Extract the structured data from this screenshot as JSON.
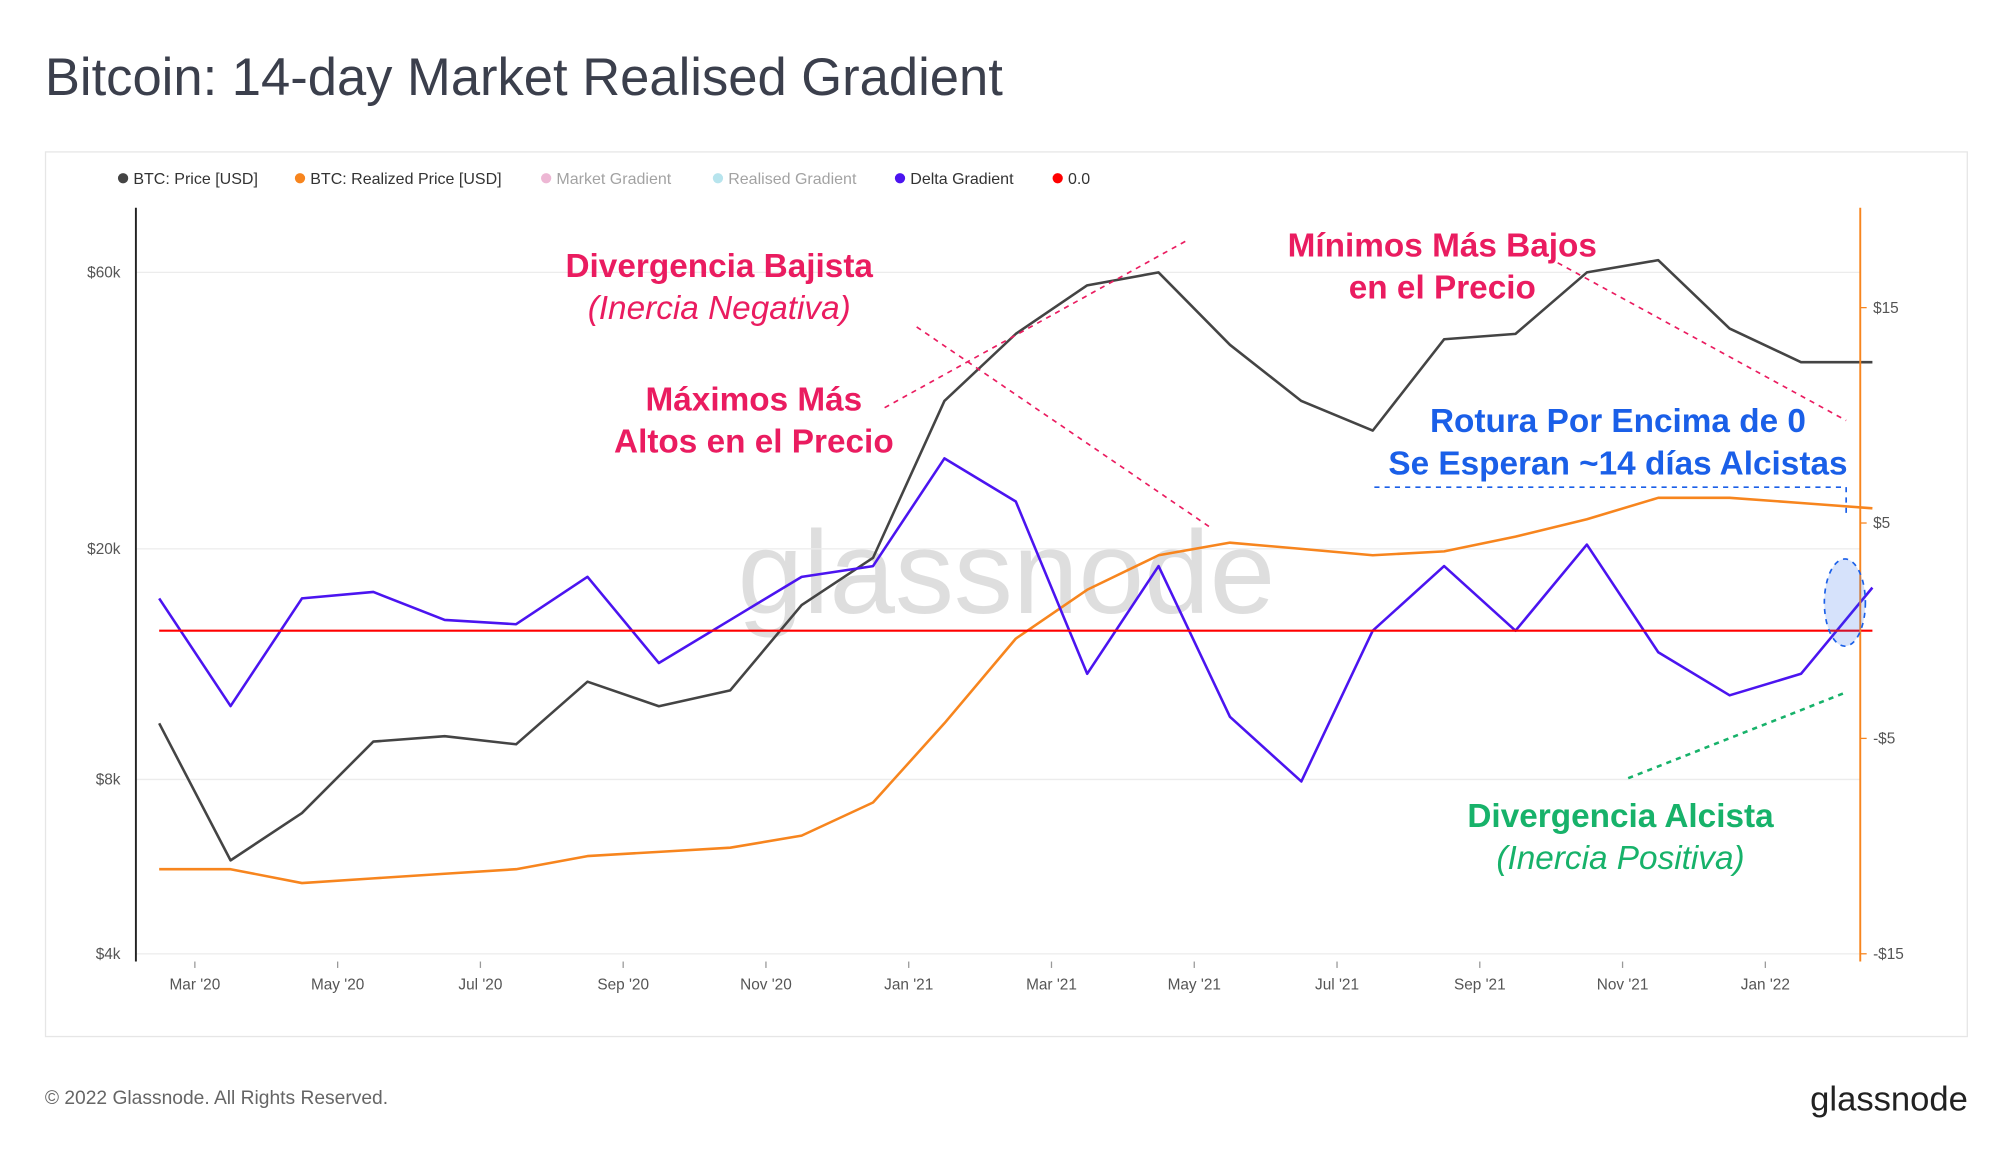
{
  "chart_data": {
    "type": "line",
    "title": "Bitcoin: 14-day Market Realised Gradient",
    "x": [
      "2020-02",
      "2020-03",
      "2020-04",
      "2020-05",
      "2020-06",
      "2020-07",
      "2020-08",
      "2020-09",
      "2020-10",
      "2020-11",
      "2020-12",
      "2021-01",
      "2021-02",
      "2021-03",
      "2021-04",
      "2021-05",
      "2021-06",
      "2021-07",
      "2021-08",
      "2021-09",
      "2021-10",
      "2021-11",
      "2021-12",
      "2022-01",
      "2022-02"
    ],
    "xticks": [
      {
        "value": "2020-03",
        "label": "Mar '20"
      },
      {
        "value": "2020-05",
        "label": "May '20"
      },
      {
        "value": "2020-07",
        "label": "Jul '20"
      },
      {
        "value": "2020-09",
        "label": "Sep '20"
      },
      {
        "value": "2020-11",
        "label": "Nov '20"
      },
      {
        "value": "2021-01",
        "label": "Jan '21"
      },
      {
        "value": "2021-03",
        "label": "Mar '21"
      },
      {
        "value": "2021-05",
        "label": "May '21"
      },
      {
        "value": "2021-07",
        "label": "Jul '21"
      },
      {
        "value": "2021-09",
        "label": "Sep '21"
      },
      {
        "value": "2021-11",
        "label": "Nov '21"
      },
      {
        "value": "2022-01",
        "label": "Jan '22"
      }
    ],
    "ylim": [
      3880,
      77600
    ],
    "ylog": true,
    "yticks": [
      {
        "value": 60000,
        "label": "$60k"
      },
      {
        "value": 20000,
        "label": "$20k"
      },
      {
        "value": 8000,
        "label": "$8k"
      },
      {
        "value": 4000,
        "label": "$4k"
      }
    ],
    "y2lim": [
      -15.36,
      19.64
    ],
    "y2ticks": [
      {
        "value": 15,
        "label": "$15"
      },
      {
        "value": 5,
        "label": "$5"
      },
      {
        "value": -5,
        "label": "-$5"
      },
      {
        "value": -15,
        "label": "-$15"
      }
    ],
    "grid": true,
    "series": [
      {
        "name": "BTC: Price [USD]",
        "color": "#444444",
        "values": [
          10000,
          5800,
          7000,
          9300,
          9500,
          9200,
          11800,
          10700,
          11400,
          16000,
          19300,
          36000,
          47000,
          57000,
          60000,
          45000,
          36000,
          32000,
          46000,
          47000,
          60000,
          63000,
          48000,
          42000,
          42000
        ]
      },
      {
        "name": "BTC: Realized Price [USD]",
        "color": "#f7851e",
        "values": [
          5600,
          5600,
          5300,
          5400,
          5500,
          5600,
          5900,
          6000,
          6100,
          6400,
          7300,
          10000,
          14000,
          17000,
          19500,
          20500,
          20000,
          19500,
          19800,
          21000,
          22500,
          24500,
          24500,
          24000,
          23500
        ]
      },
      {
        "name": "Market Gradient",
        "color": "#d85fa0",
        "hidden": true
      },
      {
        "name": "Realised Gradient",
        "color": "#5fc4d8",
        "hidden": true
      },
      {
        "name": "Delta Gradient",
        "color": "#4b14f0",
        "axis": "y2",
        "values": [
          1.5,
          -3.5,
          1.5,
          1.8,
          0.5,
          0.3,
          2.5,
          -1.5,
          0.5,
          2.5,
          3,
          8,
          6,
          -2,
          3,
          -4,
          -7,
          0,
          3,
          0,
          4,
          -1,
          -3,
          -2,
          2
        ]
      },
      {
        "name": "0.0",
        "color": "#ff0000",
        "axis": "y2",
        "values": [
          0,
          0,
          0,
          0,
          0,
          0,
          0,
          0,
          0,
          0,
          0,
          0,
          0,
          0,
          0,
          0,
          0,
          0,
          0,
          0,
          0,
          0,
          0,
          0,
          0
        ]
      }
    ],
    "annotations": [
      {
        "lines": [
          "Divergencia Bajista",
          "(Inercia Negativa)"
        ],
        "color": "#ea1c60"
      },
      {
        "lines": [
          "Máximos Más",
          "Altos en el Precio"
        ],
        "color": "#ea1c60"
      },
      {
        "lines": [
          "Mínimos Más Bajos",
          "en el Precio"
        ],
        "color": "#ea1c60"
      },
      {
        "lines": [
          "Rotura Por Encima de 0",
          "Se Esperan ~14 días Alcistas"
        ],
        "color": "#1a5fe8"
      },
      {
        "lines": [
          "Divergencia Alcista",
          "(Inercia Positiva)"
        ],
        "color": "#17b26a"
      }
    ],
    "watermark": "glassnode"
  },
  "footer": {
    "copyright": "© 2022 Glassnode. All Rights Reserved.",
    "logo": "glassnode"
  }
}
